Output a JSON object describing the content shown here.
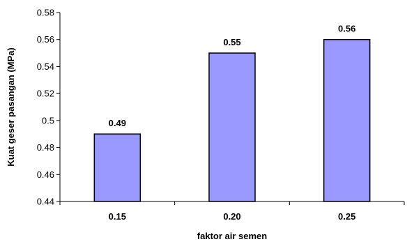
{
  "chart_data": {
    "type": "bar",
    "categories": [
      "0.15",
      "0.20",
      "0.25"
    ],
    "values": [
      0.49,
      0.55,
      0.56
    ],
    "data_labels": [
      "0.49",
      "0.55",
      "0.56"
    ],
    "title": "",
    "xlabel": "faktor air semen",
    "ylabel": "Kuat geser pasangan (MPa)",
    "ylim": [
      0.44,
      0.58
    ],
    "yticks": [
      "0.44",
      "0.46",
      "0.48",
      "0.5",
      "0.52",
      "0.54",
      "0.56",
      "0.58"
    ],
    "grid": false,
    "legend": "none",
    "bar_color": "#9999ff",
    "bar_edge_color": "#000000"
  }
}
